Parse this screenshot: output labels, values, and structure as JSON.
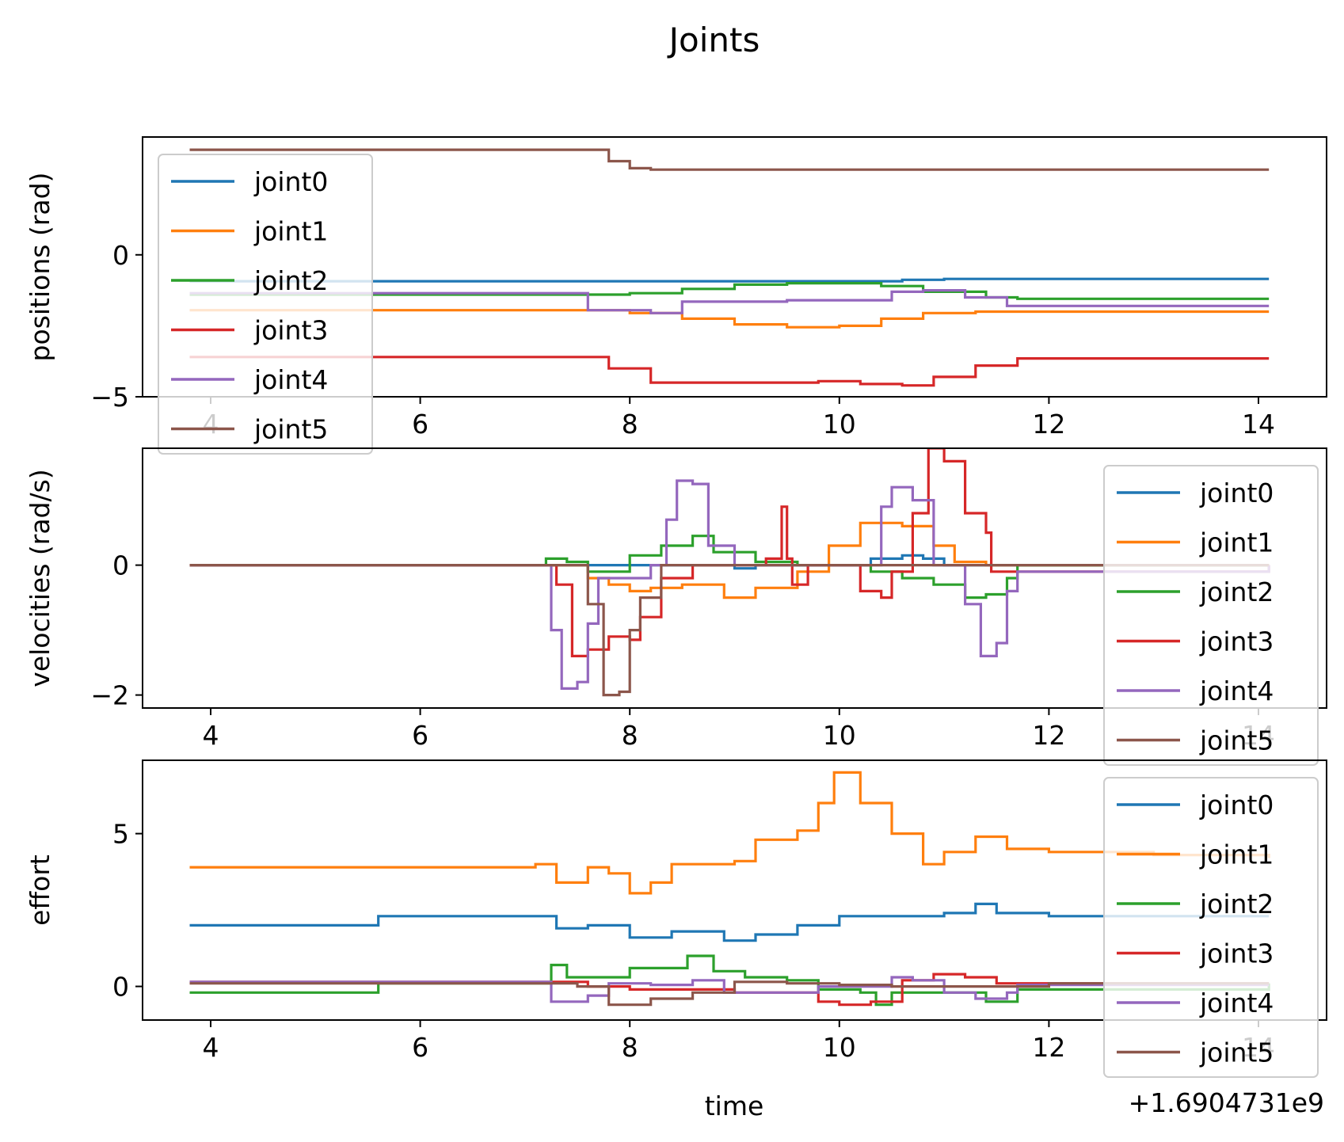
{
  "figure": {
    "title": "Joints",
    "offset_label": "+1.6904731e9",
    "x_label": "time"
  },
  "chart_data": [
    {
      "type": "line",
      "ylabel": "positions (rad)",
      "xlim": [
        3.35,
        14.65
      ],
      "ylim": [
        -5.0,
        4.15
      ],
      "x_ticks": [
        4,
        6,
        8,
        10,
        12,
        14
      ],
      "x_tick_labels": [
        "4",
        "6",
        "8",
        "10",
        "12",
        "14"
      ],
      "y_ticks": [
        0,
        -5
      ],
      "y_tick_labels": [
        "0",
        "−5"
      ],
      "legend_position": "upper-left",
      "series": [
        {
          "name": "joint0",
          "color": "#1f77b4",
          "x": [
            3.8,
            8.0,
            10.0,
            10.6,
            11.0,
            14.1
          ],
          "y": [
            -0.93,
            -0.93,
            -0.93,
            -0.88,
            -0.85,
            -0.85
          ]
        },
        {
          "name": "joint1",
          "color": "#ff7f0e",
          "x": [
            3.8,
            7.5,
            8.0,
            8.5,
            9.0,
            9.5,
            10.0,
            10.4,
            10.8,
            11.3,
            14.1
          ],
          "y": [
            -1.95,
            -1.95,
            -2.05,
            -2.25,
            -2.45,
            -2.55,
            -2.5,
            -2.25,
            -2.05,
            -2.0,
            -2.0
          ]
        },
        {
          "name": "joint2",
          "color": "#2ca02c",
          "x": [
            3.8,
            7.5,
            8.0,
            8.5,
            9.0,
            9.5,
            10.0,
            10.4,
            10.8,
            11.4,
            11.7,
            14.1
          ],
          "y": [
            -1.4,
            -1.4,
            -1.35,
            -1.2,
            -1.05,
            -1.0,
            -1.0,
            -1.1,
            -1.3,
            -1.5,
            -1.55,
            -1.55
          ]
        },
        {
          "name": "joint3",
          "color": "#d62728",
          "x": [
            3.8,
            7.4,
            7.8,
            8.2,
            9.0,
            9.8,
            10.2,
            10.6,
            10.9,
            11.3,
            11.7,
            14.1
          ],
          "y": [
            -3.6,
            -3.6,
            -4.0,
            -4.5,
            -4.5,
            -4.45,
            -4.55,
            -4.6,
            -4.3,
            -3.9,
            -3.65,
            -3.65
          ]
        },
        {
          "name": "joint4",
          "color": "#9467bd",
          "x": [
            3.8,
            7.2,
            7.6,
            8.2,
            8.5,
            9.5,
            10.0,
            10.5,
            10.8,
            11.2,
            11.6,
            14.1
          ],
          "y": [
            -1.35,
            -1.35,
            -1.95,
            -2.05,
            -1.65,
            -1.6,
            -1.6,
            -1.3,
            -1.25,
            -1.5,
            -1.8,
            -1.8
          ]
        },
        {
          "name": "joint5",
          "color": "#8c564b",
          "x": [
            3.8,
            7.6,
            7.8,
            8.0,
            8.2,
            14.1
          ],
          "y": [
            3.7,
            3.7,
            3.3,
            3.05,
            3.0,
            3.0
          ]
        }
      ]
    },
    {
      "type": "line",
      "ylabel": "velocities (rad/s)",
      "xlim": [
        3.35,
        14.65
      ],
      "ylim": [
        -2.2,
        1.8
      ],
      "x_ticks": [
        4,
        6,
        8,
        10,
        12,
        14
      ],
      "x_tick_labels": [
        "4",
        "6",
        "8",
        "10",
        "12",
        "14"
      ],
      "y_ticks": [
        0,
        -2
      ],
      "y_tick_labels": [
        "0",
        "−2"
      ],
      "legend_position": "upper-right",
      "series": [
        {
          "name": "joint0",
          "color": "#1f77b4",
          "x": [
            3.8,
            8.8,
            9.0,
            9.2,
            10.0,
            10.3,
            10.6,
            10.8,
            11.0,
            14.1
          ],
          "y": [
            0,
            0,
            -0.05,
            0,
            0,
            0.1,
            0.15,
            0.1,
            0,
            0
          ]
        },
        {
          "name": "joint1",
          "color": "#ff7f0e",
          "x": [
            3.8,
            7.3,
            7.6,
            7.8,
            8.0,
            8.2,
            8.5,
            8.9,
            9.2,
            9.6,
            9.9,
            10.2,
            10.6,
            10.9,
            11.1,
            11.4,
            14.1
          ],
          "y": [
            0,
            0,
            -0.2,
            -0.3,
            -0.4,
            -0.35,
            -0.3,
            -0.5,
            -0.35,
            -0.1,
            0.3,
            0.65,
            0.6,
            0.3,
            0.05,
            0,
            0
          ]
        },
        {
          "name": "joint2",
          "color": "#2ca02c",
          "x": [
            3.8,
            7.1,
            7.2,
            7.4,
            7.6,
            8.0,
            8.3,
            8.6,
            8.8,
            9.2,
            9.6,
            10.3,
            10.6,
            10.9,
            11.2,
            11.4,
            11.6,
            11.7,
            14.1
          ],
          "y": [
            0,
            0,
            0.1,
            0.05,
            -0.1,
            0.15,
            0.3,
            0.45,
            0.2,
            0.05,
            0,
            -0.1,
            -0.2,
            -0.3,
            -0.5,
            -0.45,
            -0.2,
            0,
            0
          ]
        },
        {
          "name": "joint3",
          "color": "#d62728",
          "x": [
            3.8,
            7.2,
            7.3,
            7.45,
            7.6,
            7.8,
            8.0,
            8.1,
            8.3,
            8.6,
            9.3,
            9.45,
            9.5,
            9.55,
            9.7,
            10.0,
            10.2,
            10.4,
            10.5,
            10.7,
            10.85,
            11.0,
            11.2,
            11.4,
            11.45,
            14.1
          ],
          "y": [
            0,
            0,
            -0.3,
            -1.4,
            -1.3,
            -1.1,
            -1.15,
            -0.8,
            -0.2,
            0,
            0.1,
            0.9,
            0.1,
            -0.3,
            0,
            0,
            -0.4,
            -0.5,
            -0.1,
            0.8,
            1.8,
            1.6,
            0.8,
            0.5,
            -0.1,
            0
          ]
        },
        {
          "name": "joint4",
          "color": "#9467bd",
          "x": [
            3.8,
            7.2,
            7.25,
            7.35,
            7.5,
            7.6,
            7.7,
            8.2,
            8.35,
            8.45,
            8.6,
            8.75,
            9.0,
            10.2,
            10.4,
            10.5,
            10.7,
            10.9,
            11.2,
            11.35,
            11.5,
            11.6,
            11.7,
            14.1
          ],
          "y": [
            0,
            0,
            -1.0,
            -1.9,
            -1.8,
            -0.9,
            -0.2,
            0,
            0.7,
            1.3,
            1.25,
            0.3,
            0,
            0,
            0.9,
            1.2,
            1.0,
            0,
            -0.6,
            -1.4,
            -1.2,
            -0.4,
            -0.1,
            0
          ]
        },
        {
          "name": "joint5",
          "color": "#8c564b",
          "x": [
            3.8,
            7.5,
            7.6,
            7.75,
            7.9,
            8.0,
            8.1,
            8.3,
            14.1
          ],
          "y": [
            0,
            0,
            -0.6,
            -2.0,
            -1.95,
            -1.0,
            -0.5,
            0,
            0
          ]
        }
      ]
    },
    {
      "type": "line",
      "ylabel": "effort",
      "xlim": [
        3.35,
        14.65
      ],
      "ylim": [
        -1.1,
        7.4
      ],
      "x_ticks": [
        4,
        6,
        8,
        10,
        12,
        14
      ],
      "x_tick_labels": [
        "4",
        "6",
        "8",
        "10",
        "12",
        "14"
      ],
      "y_ticks": [
        5,
        0
      ],
      "y_tick_labels": [
        "5",
        "0"
      ],
      "legend_position": "upper-right",
      "series": [
        {
          "name": "joint0",
          "color": "#1f77b4",
          "x": [
            3.8,
            5.5,
            5.6,
            7.1,
            7.3,
            7.6,
            8.0,
            8.4,
            8.9,
            9.2,
            9.6,
            10.0,
            10.5,
            11.0,
            11.3,
            11.5,
            12.0,
            14.1
          ],
          "y": [
            2.0,
            2.0,
            2.3,
            2.3,
            1.9,
            2.0,
            1.6,
            1.8,
            1.5,
            1.7,
            2.0,
            2.3,
            2.3,
            2.4,
            2.7,
            2.4,
            2.3,
            2.3
          ]
        },
        {
          "name": "joint1",
          "color": "#ff7f0e",
          "x": [
            3.8,
            5.5,
            7.1,
            7.3,
            7.6,
            7.8,
            8.0,
            8.2,
            8.4,
            9.0,
            9.2,
            9.6,
            9.8,
            9.95,
            10.2,
            10.5,
            10.8,
            11.0,
            11.3,
            11.6,
            12.0,
            13.0,
            14.1
          ],
          "y": [
            3.9,
            3.9,
            4.0,
            3.4,
            3.9,
            3.7,
            3.05,
            3.4,
            4.0,
            4.1,
            4.8,
            5.1,
            6.0,
            7.0,
            6.0,
            5.0,
            4.0,
            4.4,
            4.9,
            4.5,
            4.4,
            4.3,
            4.2
          ]
        },
        {
          "name": "joint2",
          "color": "#2ca02c",
          "x": [
            3.8,
            5.5,
            5.6,
            7.1,
            7.25,
            7.4,
            7.6,
            8.0,
            8.4,
            8.55,
            8.8,
            9.1,
            9.5,
            9.8,
            10.2,
            10.35,
            10.5,
            10.8,
            11.0,
            11.4,
            11.7,
            14.1
          ],
          "y": [
            -0.2,
            -0.2,
            0.1,
            0.1,
            0.7,
            0.3,
            0.3,
            0.6,
            0.6,
            1.0,
            0.5,
            0.3,
            0.2,
            -0.1,
            -0.2,
            -0.6,
            -0.2,
            -0.2,
            -0.2,
            -0.5,
            -0.1,
            0.1
          ]
        },
        {
          "name": "joint3",
          "color": "#d62728",
          "x": [
            3.8,
            7.1,
            7.6,
            8.0,
            8.5,
            9.0,
            9.5,
            9.8,
            10.0,
            10.3,
            10.6,
            10.9,
            11.2,
            11.5,
            14.1
          ],
          "y": [
            0.15,
            0.15,
            0.0,
            -0.1,
            -0.1,
            -0.2,
            -0.2,
            -0.5,
            -0.6,
            -0.5,
            0.2,
            0.4,
            0.3,
            0.1,
            0.1
          ]
        },
        {
          "name": "joint4",
          "color": "#9467bd",
          "x": [
            3.8,
            7.1,
            7.25,
            7.6,
            7.8,
            8.2,
            8.6,
            8.9,
            9.3,
            9.8,
            10.3,
            10.5,
            10.7,
            11.0,
            11.3,
            11.6,
            11.7,
            14.1
          ],
          "y": [
            0.15,
            0.15,
            -0.5,
            -0.3,
            0.1,
            0.05,
            0.2,
            -0.2,
            -0.2,
            0.0,
            0.0,
            0.3,
            0.2,
            -0.2,
            -0.4,
            -0.2,
            0.05,
            0.05
          ]
        },
        {
          "name": "joint5",
          "color": "#8c564b",
          "x": [
            3.8,
            7.1,
            7.5,
            7.8,
            8.2,
            8.6,
            9.0,
            9.5,
            10.0,
            10.5,
            11.0,
            12.0,
            14.1
          ],
          "y": [
            0.1,
            0.1,
            0.0,
            -0.6,
            -0.4,
            -0.2,
            0.15,
            0.1,
            0.05,
            0.0,
            0.0,
            0.1,
            0.1
          ]
        }
      ]
    }
  ]
}
